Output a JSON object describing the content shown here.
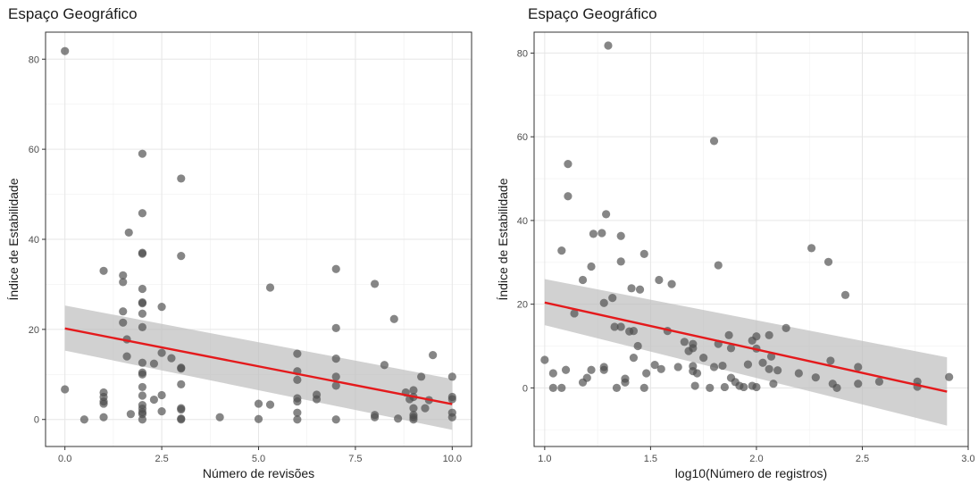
{
  "chart_data": [
    {
      "type": "scatter",
      "title": "Espaço Geográfico",
      "xlabel": "Número de revisões",
      "ylabel": "Índice de Estabilidade",
      "xlim": [
        -0.5,
        10.5
      ],
      "ylim": [
        -6,
        86
      ],
      "x_ticks": [
        0,
        2.5,
        5,
        7.5,
        10
      ],
      "x_tick_labels": [
        "0.0",
        "2.5",
        "5.0",
        "7.5",
        "10.0"
      ],
      "y_ticks": [
        0,
        20,
        40,
        60,
        80
      ],
      "y_tick_labels": [
        "0",
        "20",
        "40",
        "60",
        "80"
      ],
      "grid": true,
      "point_color": "#4d4d4d",
      "line_color": "#e41a1c",
      "ribbon_color": "#bdbdbd",
      "regression": {
        "x": [
          0,
          10
        ],
        "y": [
          20.2,
          3.4
        ],
        "ci_low": [
          15.3,
          -2.3
        ],
        "ci_high": [
          25.3,
          9.0
        ]
      },
      "points": [
        [
          0,
          81.8
        ],
        [
          0,
          6.7
        ],
        [
          0.5,
          0
        ],
        [
          1,
          33
        ],
        [
          1,
          6
        ],
        [
          1,
          5
        ],
        [
          1,
          4
        ],
        [
          1,
          3.5
        ],
        [
          1,
          0.5
        ],
        [
          1.5,
          32
        ],
        [
          1.5,
          30.5
        ],
        [
          1.5,
          24
        ],
        [
          1.5,
          21.5
        ],
        [
          1.6,
          17.8
        ],
        [
          1.6,
          14
        ],
        [
          1.65,
          41.5
        ],
        [
          1.7,
          1.2
        ],
        [
          2,
          59
        ],
        [
          2,
          45.8
        ],
        [
          2,
          37
        ],
        [
          2,
          36.8
        ],
        [
          2,
          29
        ],
        [
          2,
          26
        ],
        [
          2,
          25.8
        ],
        [
          2,
          23.5
        ],
        [
          2,
          20.5
        ],
        [
          2,
          12.6
        ],
        [
          2,
          10.4
        ],
        [
          2,
          10
        ],
        [
          2,
          7.2
        ],
        [
          2,
          5.3
        ],
        [
          2,
          3.2
        ],
        [
          2,
          2.4
        ],
        [
          2,
          1.6
        ],
        [
          2,
          1.2
        ],
        [
          2,
          0
        ],
        [
          2.3,
          12.4
        ],
        [
          2.3,
          4.4
        ],
        [
          2.5,
          25
        ],
        [
          2.5,
          14.8
        ],
        [
          2.5,
          5.4
        ],
        [
          2.5,
          1.8
        ],
        [
          2.75,
          13.6
        ],
        [
          3,
          53.5
        ],
        [
          3,
          36.3
        ],
        [
          3,
          11.5
        ],
        [
          3,
          11.3
        ],
        [
          3,
          7.8
        ],
        [
          3,
          2.5
        ],
        [
          3,
          2.2
        ],
        [
          3,
          0.2
        ],
        [
          3,
          0
        ],
        [
          4,
          0.5
        ],
        [
          5,
          3.5
        ],
        [
          5,
          0.1
        ],
        [
          5.3,
          29.3
        ],
        [
          5.3,
          3.3
        ],
        [
          6,
          14.6
        ],
        [
          6,
          10.7
        ],
        [
          6,
          8.8
        ],
        [
          6,
          4.7
        ],
        [
          6,
          4
        ],
        [
          6,
          1.5
        ],
        [
          6,
          0
        ],
        [
          6.5,
          5.5
        ],
        [
          6.5,
          4.5
        ],
        [
          7,
          33.4
        ],
        [
          7,
          20.3
        ],
        [
          7,
          13.5
        ],
        [
          7,
          9.5
        ],
        [
          7,
          7.5
        ],
        [
          7,
          0
        ],
        [
          8,
          30.1
        ],
        [
          8,
          1
        ],
        [
          8,
          0.5
        ],
        [
          8.25,
          12.1
        ],
        [
          8.5,
          22.3
        ],
        [
          8.6,
          0.2
        ],
        [
          8.8,
          6
        ],
        [
          8.9,
          4.5
        ],
        [
          9,
          6.5
        ],
        [
          9,
          5
        ],
        [
          9,
          2.5
        ],
        [
          9,
          1
        ],
        [
          9,
          0.5
        ],
        [
          9,
          0
        ],
        [
          9.2,
          9.5
        ],
        [
          9.3,
          2.5
        ],
        [
          9.4,
          4.3
        ],
        [
          9.5,
          14.3
        ],
        [
          10,
          9.5
        ],
        [
          10,
          5
        ],
        [
          10,
          4.5
        ],
        [
          10,
          1.5
        ],
        [
          10,
          0.5
        ]
      ]
    },
    {
      "type": "scatter",
      "title": "Espaço Geográfico",
      "xlabel": "log10(Número de registros)",
      "ylabel": "Índice de Estabilidade",
      "xlim": [
        0.95,
        3.0
      ],
      "ylim": [
        -14,
        85
      ],
      "x_ticks": [
        1.0,
        1.5,
        2.0,
        2.5,
        3.0
      ],
      "x_tick_labels": [
        "1.0",
        "1.5",
        "2.0",
        "2.5",
        "3.0"
      ],
      "y_ticks": [
        0,
        20,
        40,
        60,
        80
      ],
      "y_tick_labels": [
        "0",
        "20",
        "40",
        "60",
        "80"
      ],
      "grid": true,
      "point_color": "#4d4d4d",
      "line_color": "#e41a1c",
      "ribbon_color": "#bdbdbd",
      "regression": {
        "x": [
          1.0,
          2.9
        ],
        "y": [
          20.4,
          -0.9
        ],
        "ci_low": [
          15.0,
          -9.0
        ],
        "ci_high": [
          26.0,
          7.3
        ]
      },
      "points": [
        [
          1.0,
          6.7
        ],
        [
          1.04,
          3.5
        ],
        [
          1.04,
          0
        ],
        [
          1.08,
          32.8
        ],
        [
          1.08,
          0
        ],
        [
          1.1,
          4.3
        ],
        [
          1.11,
          53.5
        ],
        [
          1.11,
          45.8
        ],
        [
          1.14,
          17.8
        ],
        [
          1.18,
          25.8
        ],
        [
          1.18,
          1.3
        ],
        [
          1.2,
          2.4
        ],
        [
          1.22,
          29
        ],
        [
          1.22,
          4.3
        ],
        [
          1.23,
          36.8
        ],
        [
          1.27,
          37
        ],
        [
          1.28,
          20.3
        ],
        [
          1.28,
          5
        ],
        [
          1.28,
          4.3
        ],
        [
          1.29,
          41.5
        ],
        [
          1.3,
          81.8
        ],
        [
          1.32,
          21.5
        ],
        [
          1.33,
          14.6
        ],
        [
          1.34,
          0
        ],
        [
          1.36,
          36.3
        ],
        [
          1.36,
          30.2
        ],
        [
          1.36,
          14.6
        ],
        [
          1.38,
          2.2
        ],
        [
          1.38,
          1.3
        ],
        [
          1.4,
          13.5
        ],
        [
          1.41,
          23.8
        ],
        [
          1.42,
          13.6
        ],
        [
          1.42,
          7.2
        ],
        [
          1.44,
          10
        ],
        [
          1.45,
          23.5
        ],
        [
          1.47,
          32
        ],
        [
          1.47,
          0
        ],
        [
          1.48,
          3.5
        ],
        [
          1.52,
          5.5
        ],
        [
          1.54,
          25.8
        ],
        [
          1.55,
          4.5
        ],
        [
          1.58,
          13.6
        ],
        [
          1.6,
          24.8
        ],
        [
          1.63,
          5
        ],
        [
          1.66,
          11
        ],
        [
          1.68,
          8.8
        ],
        [
          1.7,
          10.5
        ],
        [
          1.7,
          9.5
        ],
        [
          1.7,
          5.2
        ],
        [
          1.7,
          4
        ],
        [
          1.71,
          0.5
        ],
        [
          1.72,
          3.5
        ],
        [
          1.75,
          7.2
        ],
        [
          1.78,
          0
        ],
        [
          1.8,
          59
        ],
        [
          1.8,
          5
        ],
        [
          1.82,
          29.3
        ],
        [
          1.82,
          10.5
        ],
        [
          1.84,
          5.3
        ],
        [
          1.85,
          0.2
        ],
        [
          1.87,
          12.6
        ],
        [
          1.88,
          9.5
        ],
        [
          1.88,
          2.4
        ],
        [
          1.9,
          1.4
        ],
        [
          1.92,
          0.5
        ],
        [
          1.94,
          0.2
        ],
        [
          1.96,
          5.6
        ],
        [
          1.98,
          11.3
        ],
        [
          1.98,
          0.5
        ],
        [
          2.0,
          12.3
        ],
        [
          2.0,
          9.4
        ],
        [
          2.0,
          0.2
        ],
        [
          2.03,
          6
        ],
        [
          2.06,
          4.5
        ],
        [
          2.06,
          12.6
        ],
        [
          2.07,
          7.5
        ],
        [
          2.08,
          1
        ],
        [
          2.1,
          4.2
        ],
        [
          2.14,
          14.3
        ],
        [
          2.2,
          3.5
        ],
        [
          2.26,
          33.4
        ],
        [
          2.28,
          2.5
        ],
        [
          2.34,
          30.1
        ],
        [
          2.35,
          6.5
        ],
        [
          2.36,
          1
        ],
        [
          2.38,
          0
        ],
        [
          2.42,
          22.2
        ],
        [
          2.48,
          5
        ],
        [
          2.48,
          1
        ],
        [
          2.58,
          1.5
        ],
        [
          2.76,
          1.5
        ],
        [
          2.76,
          0.3
        ],
        [
          2.91,
          2.6
        ]
      ]
    }
  ]
}
